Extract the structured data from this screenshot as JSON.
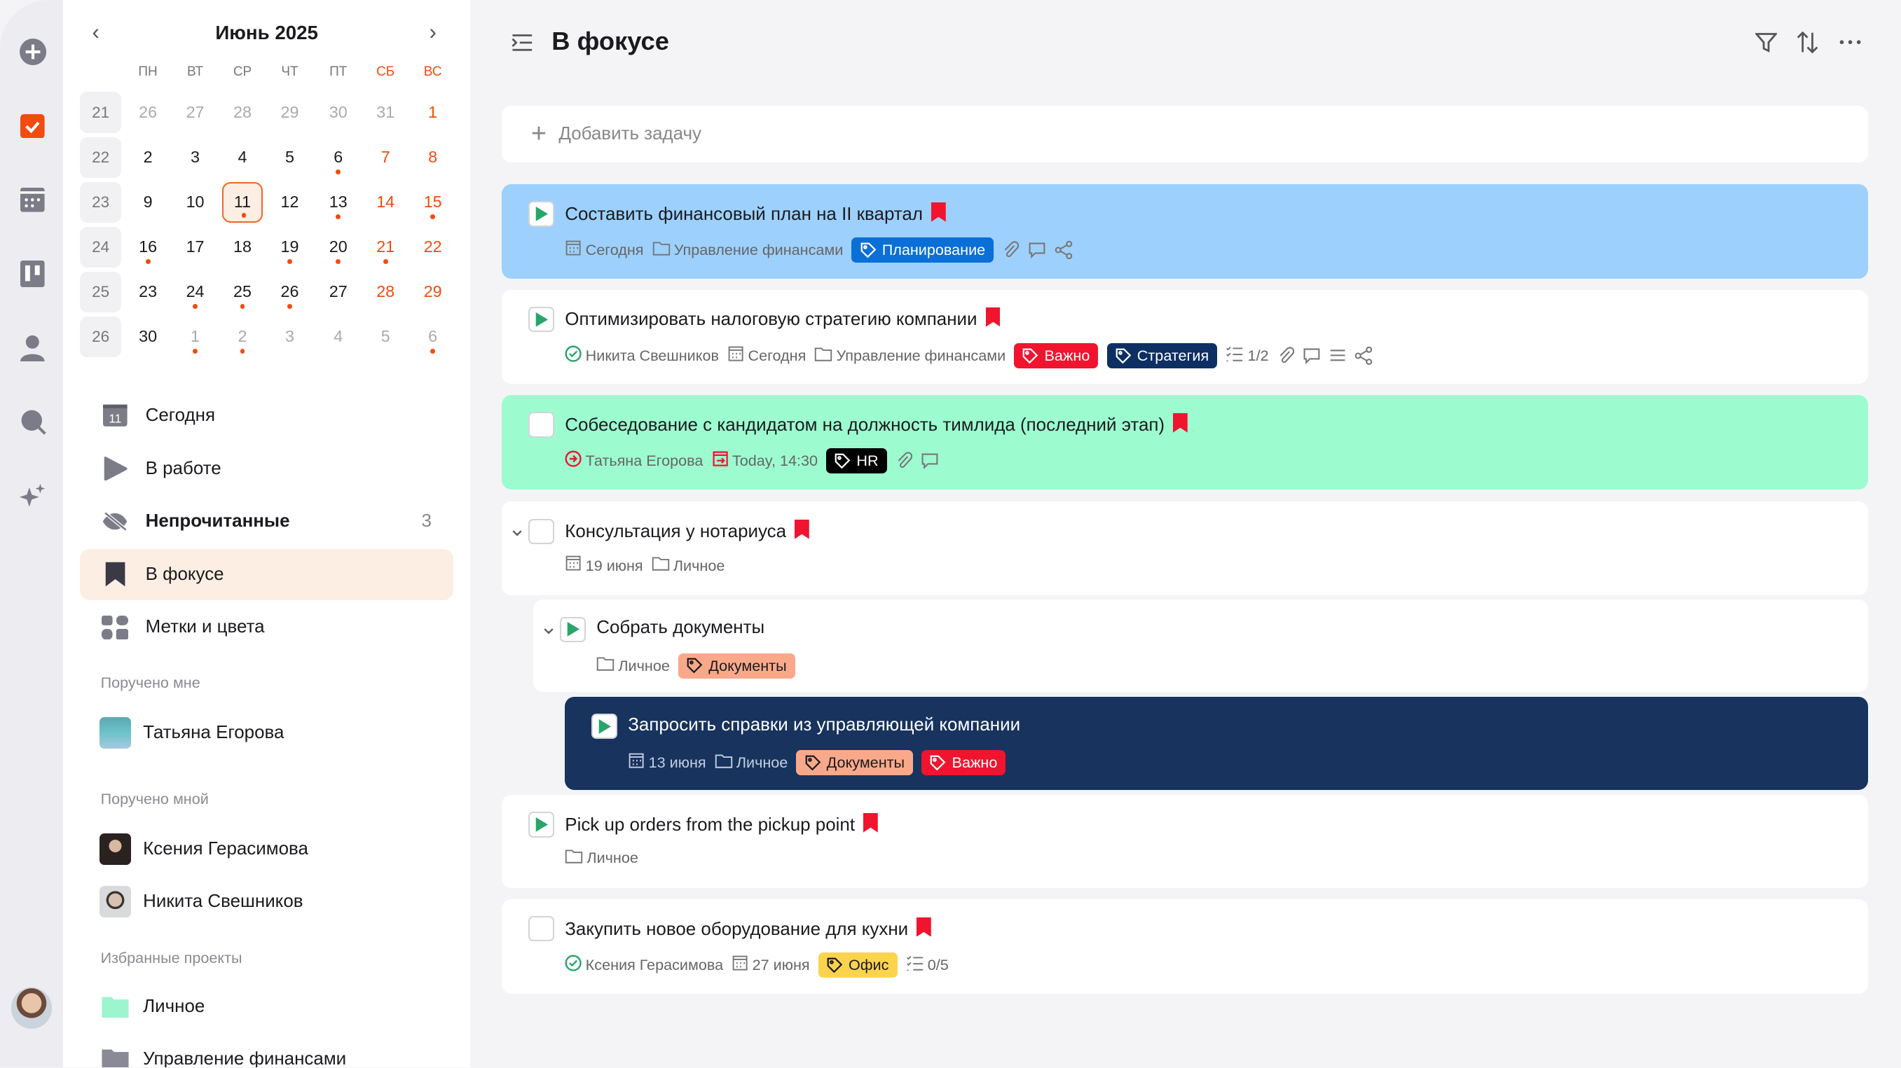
{
  "colors": {
    "accent": "#f24b0f",
    "active_bg": "#fdeee4",
    "play": "#2aa56a"
  },
  "rail": {
    "icons": [
      "add-icon",
      "tasks-icon",
      "calendar-icon",
      "board-icon",
      "contacts-icon",
      "search-icon",
      "ai-sparkles-icon"
    ]
  },
  "calendar": {
    "title": "Июнь 2025",
    "weekdays": [
      "ПН",
      "ВТ",
      "СР",
      "ЧТ",
      "ПТ",
      "СБ",
      "ВС"
    ],
    "weeks": [
      {
        "num": "21",
        "days": [
          [
            "26",
            "o",
            0
          ],
          [
            "27",
            "o",
            0
          ],
          [
            "28",
            "o",
            0
          ],
          [
            "29",
            "o",
            0
          ],
          [
            "30",
            "o",
            0
          ],
          [
            "31",
            "o",
            0
          ],
          [
            "1",
            "w",
            0
          ]
        ]
      },
      {
        "num": "22",
        "days": [
          [
            "2",
            "",
            0
          ],
          [
            "3",
            "",
            0
          ],
          [
            "4",
            "",
            0
          ],
          [
            "5",
            "",
            0
          ],
          [
            "6",
            "",
            1
          ],
          [
            "7",
            "w",
            0
          ],
          [
            "8",
            "w",
            0
          ]
        ]
      },
      {
        "num": "23",
        "days": [
          [
            "9",
            "",
            0
          ],
          [
            "10",
            "",
            0
          ],
          [
            "11",
            "t",
            1
          ],
          [
            "12",
            "",
            0
          ],
          [
            "13",
            "",
            1
          ],
          [
            "14",
            "w",
            0
          ],
          [
            "15",
            "w",
            1
          ]
        ]
      },
      {
        "num": "24",
        "days": [
          [
            "16",
            "",
            1
          ],
          [
            "17",
            "",
            0
          ],
          [
            "18",
            "",
            0
          ],
          [
            "19",
            "",
            1
          ],
          [
            "20",
            "",
            1
          ],
          [
            "21",
            "w",
            1
          ],
          [
            "22",
            "w",
            0
          ]
        ]
      },
      {
        "num": "25",
        "days": [
          [
            "23",
            "",
            0
          ],
          [
            "24",
            "",
            1
          ],
          [
            "25",
            "",
            1
          ],
          [
            "26",
            "",
            1
          ],
          [
            "27",
            "",
            0
          ],
          [
            "28",
            "w",
            0
          ],
          [
            "29",
            "w",
            0
          ]
        ]
      },
      {
        "num": "26",
        "days": [
          [
            "30",
            "",
            0
          ],
          [
            "1",
            "o",
            1
          ],
          [
            "2",
            "o",
            1
          ],
          [
            "3",
            "o",
            0
          ],
          [
            "4",
            "o",
            0
          ],
          [
            "5",
            "o",
            0
          ],
          [
            "6",
            "o",
            1
          ]
        ]
      }
    ]
  },
  "nav": [
    {
      "label": "Сегодня",
      "icon": "today-icon"
    },
    {
      "label": "В работе",
      "icon": "play-icon"
    },
    {
      "label": "Непрочитанные",
      "icon": "unread-icon",
      "count": "3",
      "bold": true
    },
    {
      "label": "В фокусе",
      "icon": "bookmark-icon",
      "active": true
    },
    {
      "label": "Метки и цвета",
      "icon": "tags-icon"
    }
  ],
  "sections": {
    "assigned_to_me": {
      "title": "Поручено мне",
      "people": [
        "Татьяна Егорова"
      ]
    },
    "assigned_by_me": {
      "title": "Поручено мной",
      "people": [
        "Ксения Герасимова",
        "Никита Свешников"
      ]
    },
    "favorite_projects": {
      "title": "Избранные проекты",
      "projects": [
        {
          "name": "Личное",
          "color": "#9cf5cf"
        },
        {
          "name": "Управление финансами",
          "color": "#8a8a96"
        }
      ]
    }
  },
  "header": {
    "title": "В фокусе"
  },
  "add_task": {
    "placeholder": "Добавить задачу"
  },
  "tasks": [
    {
      "title": "Составить финансовый план на II квартал",
      "bookmark": true,
      "status": "in-progress",
      "bg": "#9dd0fc",
      "meta": [
        {
          "t": "date",
          "v": "Сегодня"
        },
        {
          "t": "project",
          "v": "Управление финансами"
        },
        {
          "t": "tag",
          "v": "Планирование",
          "color": "#0a6fd6"
        },
        {
          "t": "attach"
        },
        {
          "t": "comment"
        },
        {
          "t": "share"
        }
      ]
    },
    {
      "title": "Оптимизировать налоговую стратегию  компании",
      "bookmark": true,
      "status": "in-progress",
      "bg": "#ffffff",
      "meta": [
        {
          "t": "assignee",
          "v": "Никита Свешников",
          "state": "done"
        },
        {
          "t": "date",
          "v": "Сегодня"
        },
        {
          "t": "project",
          "v": "Управление финансами"
        },
        {
          "t": "tag",
          "v": "Важно",
          "color": "#f0142f"
        },
        {
          "t": "tag",
          "v": "Стратегия",
          "color": "#0d2f63"
        },
        {
          "t": "checklist",
          "v": "1/2"
        },
        {
          "t": "attach"
        },
        {
          "t": "comment"
        },
        {
          "t": "description"
        },
        {
          "t": "share"
        }
      ]
    },
    {
      "title": "Собеседование с кандидатом на должность тимлида (последний этап)",
      "bookmark": true,
      "status": "todo",
      "bg": "#9cfcd0",
      "meta": [
        {
          "t": "assignee",
          "v": "Татьяна Егорова",
          "state": "incoming"
        },
        {
          "t": "date",
          "v": "Today, 14:30",
          "overdue": true
        },
        {
          "t": "tag",
          "v": "HR",
          "color": "#000000"
        },
        {
          "t": "attach"
        },
        {
          "t": "comment"
        }
      ]
    },
    {
      "title": "Консультация у нотариуса",
      "bookmark": true,
      "status": "todo",
      "bg": "#ffffff",
      "expanded": true,
      "meta": [
        {
          "t": "date",
          "v": "19 июня"
        },
        {
          "t": "project",
          "v": "Личное"
        }
      ]
    },
    {
      "title": "Собрать документы",
      "status": "in-progress",
      "bg": "#ffffff",
      "level": 1,
      "expanded": true,
      "meta": [
        {
          "t": "project",
          "v": "Личное"
        },
        {
          "t": "tag",
          "v": "Документы",
          "color": "#f9a98a",
          "dark_text": true
        }
      ]
    },
    {
      "title": "Запросить справки из управляющей компании",
      "status": "in-progress",
      "bg": "#17335e",
      "level": 2,
      "dark": true,
      "meta": [
        {
          "t": "date",
          "v": "13 июня"
        },
        {
          "t": "project",
          "v": "Личное"
        },
        {
          "t": "tag",
          "v": "Документы",
          "color": "#f9a98a",
          "dark_text": true
        },
        {
          "t": "tag",
          "v": "Важно",
          "color": "#f0142f"
        }
      ]
    },
    {
      "title": "Pick up orders from the pickup point",
      "bookmark": true,
      "status": "in-progress",
      "bg": "#ffffff",
      "meta": [
        {
          "t": "project",
          "v": "Личное"
        }
      ]
    },
    {
      "title": "Закупить новое оборудование для кухни",
      "bookmark": true,
      "status": "todo",
      "bg": "#ffffff",
      "meta": [
        {
          "t": "assignee",
          "v": "Ксения Герасимова",
          "state": "done"
        },
        {
          "t": "date",
          "v": "27 июня"
        },
        {
          "t": "tag",
          "v": "Офис",
          "color": "#fcd34d",
          "dark_text": true
        },
        {
          "t": "checklist",
          "v": "0/5"
        }
      ]
    }
  ]
}
